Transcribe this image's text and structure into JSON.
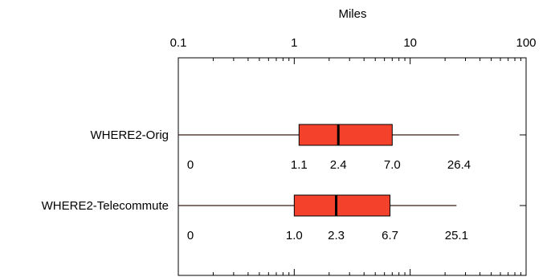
{
  "chart_data": {
    "type": "boxplot",
    "title": "",
    "xlabel": "Miles",
    "x_scale": "log",
    "xlim": [
      0.1,
      100
    ],
    "x_ticks": [
      {
        "value": 0.1,
        "label": "0.1"
      },
      {
        "value": 1,
        "label": "1"
      },
      {
        "value": 10,
        "label": "10"
      },
      {
        "value": 100,
        "label": "100"
      }
    ],
    "grid": false,
    "box_color": "#f4412c",
    "series": [
      {
        "category": "WHERE2-Orig",
        "whisker_low": 0.1,
        "q1": 1.1,
        "median": 2.4,
        "q3": 7.0,
        "whisker_high": 26.4,
        "labels": [
          "0",
          "1.1",
          "2.4",
          "7.0",
          "26.4"
        ]
      },
      {
        "category": "WHERE2-Telecommute",
        "whisker_low": 0.1,
        "q1": 1.0,
        "median": 2.3,
        "q3": 6.7,
        "whisker_high": 25.1,
        "labels": [
          "0",
          "1.0",
          "2.3",
          "6.7",
          "25.1"
        ]
      }
    ]
  }
}
